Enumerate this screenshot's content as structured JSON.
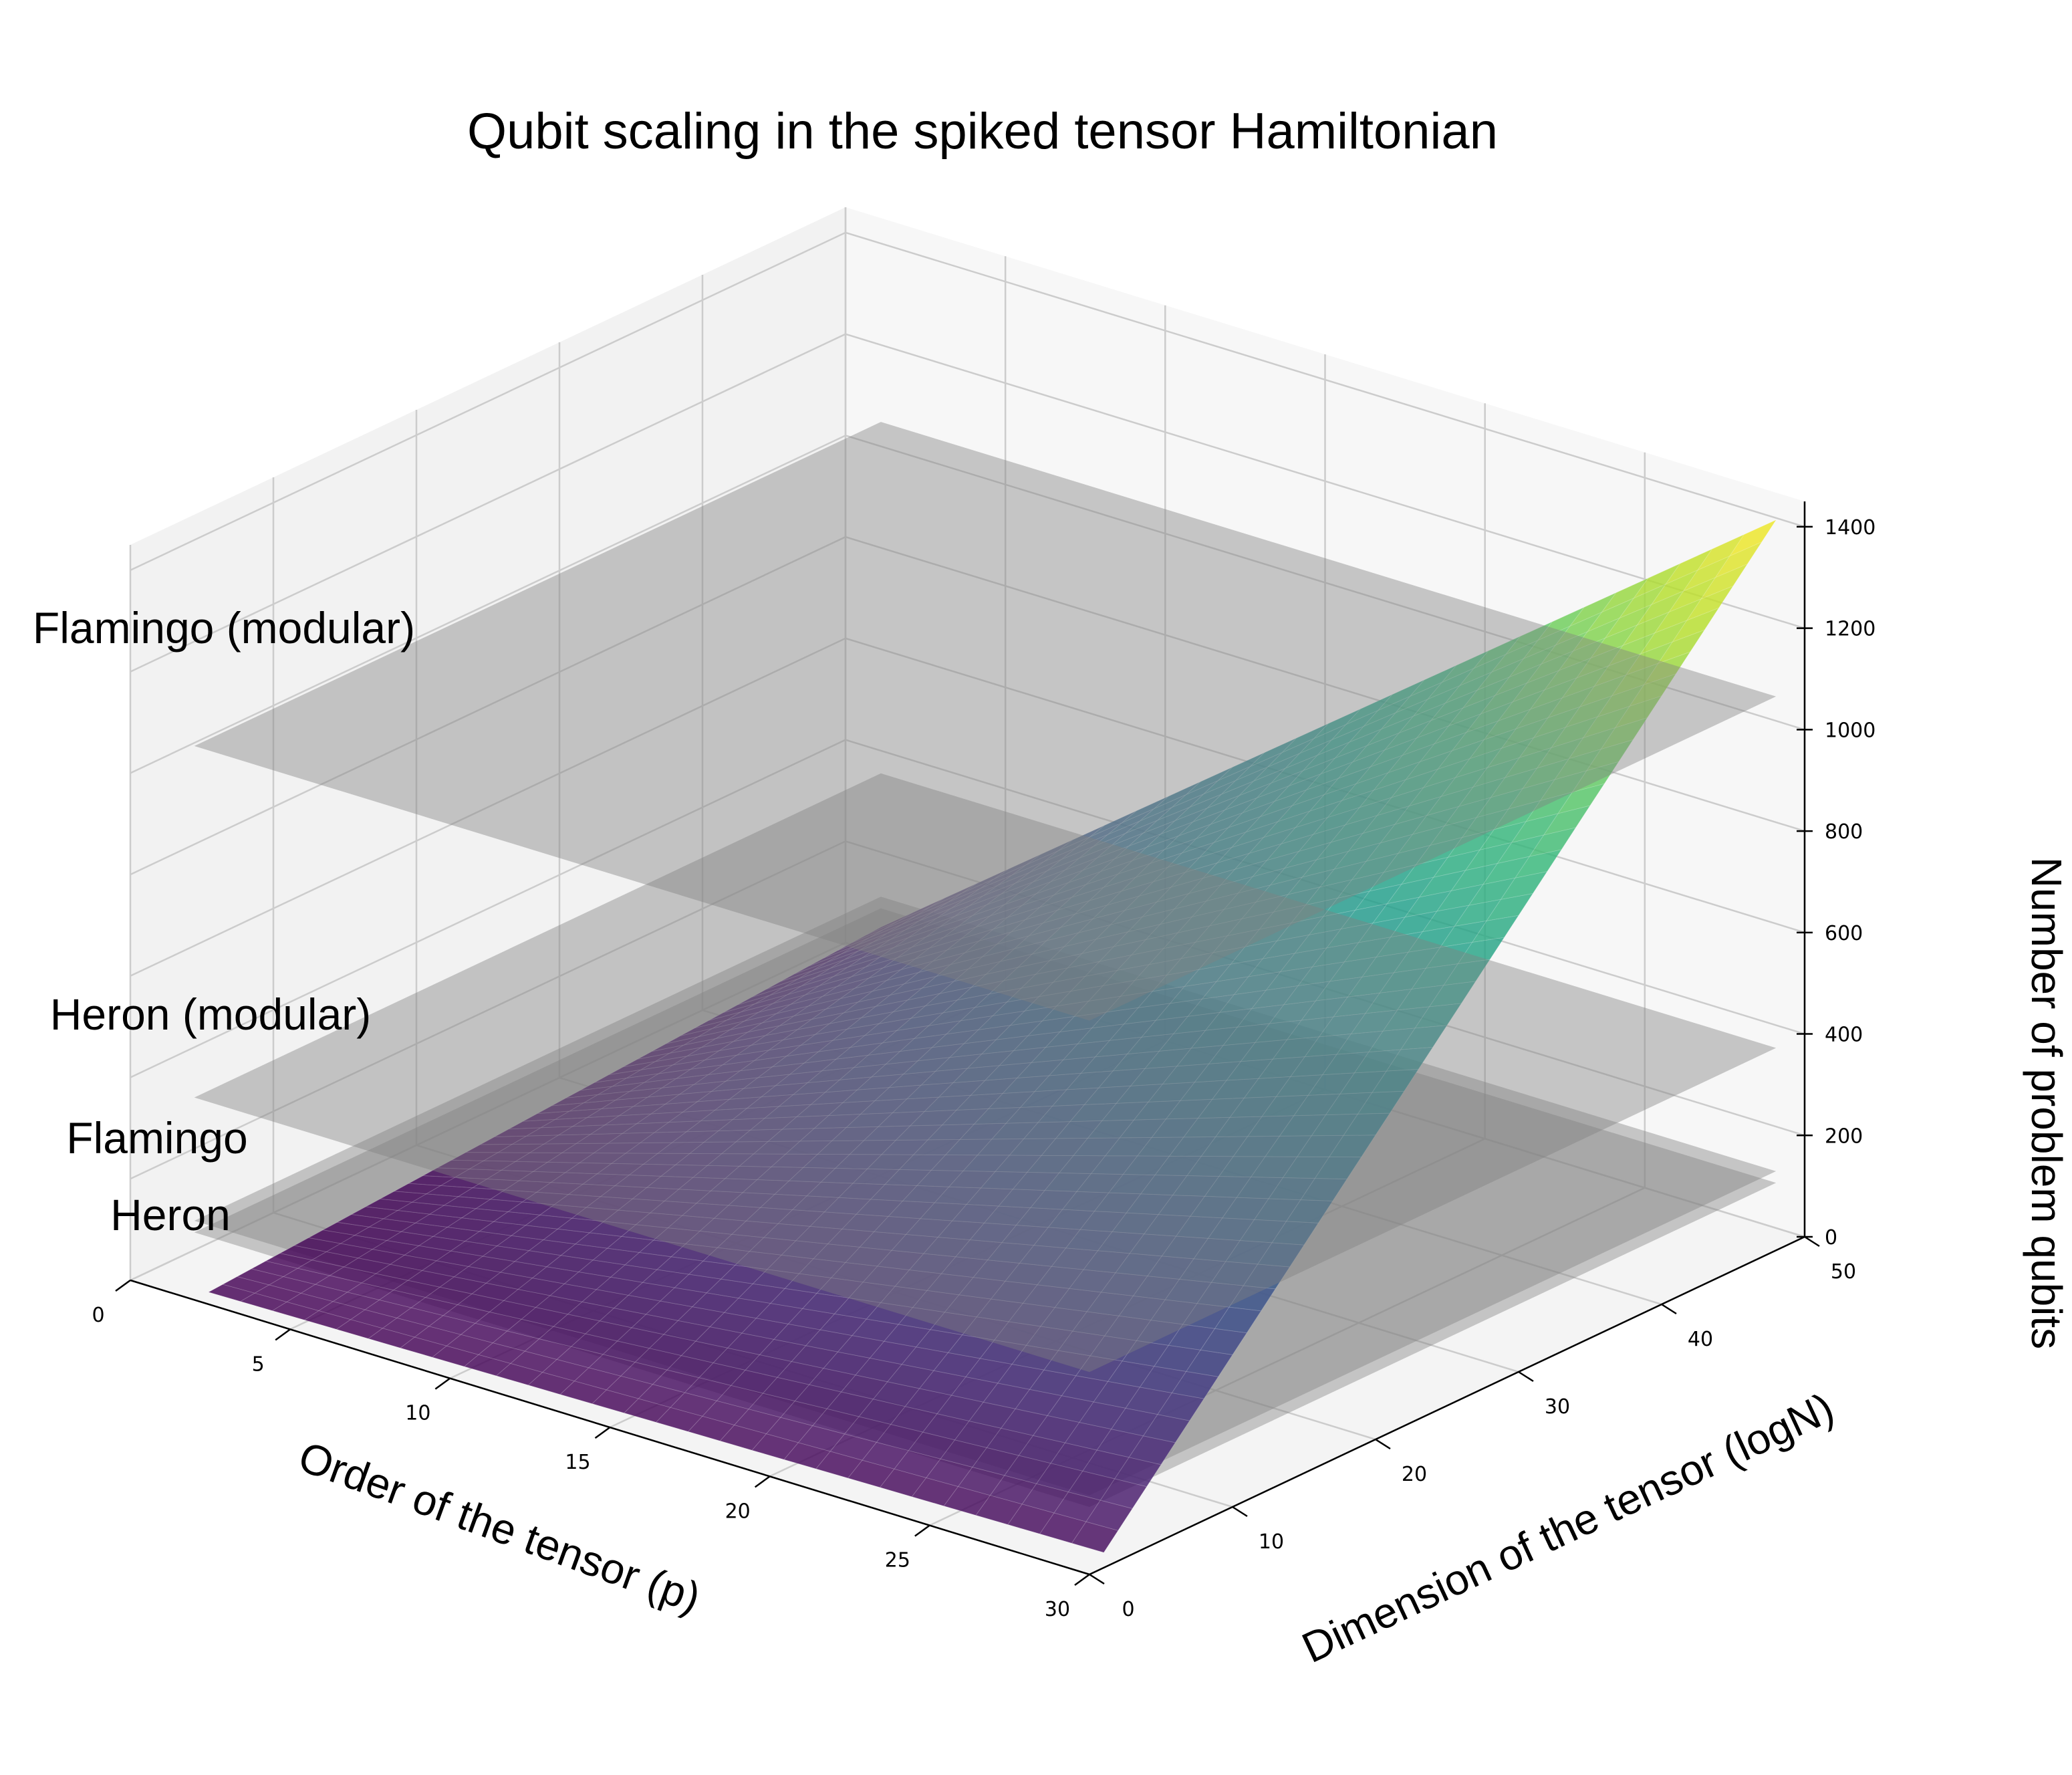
{
  "chart_data": {
    "type": "surface3d",
    "title": "Qubit scaling in the spiked tensor Hamiltonian",
    "xlabel": "Order of the tensor (p)",
    "ylabel": "Dimension of the tensor (logN)",
    "zlabel": "Number of problem qubits",
    "xlim": [
      0,
      30
    ],
    "ylim": [
      0,
      50
    ],
    "zlim": [
      0,
      1450
    ],
    "x_ticks": [
      "0",
      "5",
      "10",
      "15",
      "20",
      "25",
      "30"
    ],
    "y_ticks": [
      "0",
      "10",
      "20",
      "30",
      "40",
      "50"
    ],
    "z_ticks": [
      "0",
      "200",
      "400",
      "600",
      "800",
      "1000",
      "1200",
      "1400"
    ],
    "grid": true,
    "colormap": "viridis",
    "surface": {
      "formula": "qubits = p * logN",
      "corners": [
        {
          "p": 2,
          "logN": 1,
          "qubits": 2
        },
        {
          "p": 30,
          "logN": 1,
          "qubits": 30
        },
        {
          "p": 2,
          "logN": 48,
          "qubits": 96
        },
        {
          "p": 30,
          "logN": 48,
          "qubits": 1440
        }
      ]
    },
    "planes": [
      {
        "name": "Heron",
        "qubits": 133,
        "color": "#808080"
      },
      {
        "name": "Flamingo",
        "qubits": 156,
        "color": "#808080"
      },
      {
        "name": "Heron (modular)",
        "qubits": 399,
        "color": "#808080"
      },
      {
        "name": "Flamingo (modular)",
        "qubits": 1092,
        "color": "#808080"
      }
    ]
  }
}
